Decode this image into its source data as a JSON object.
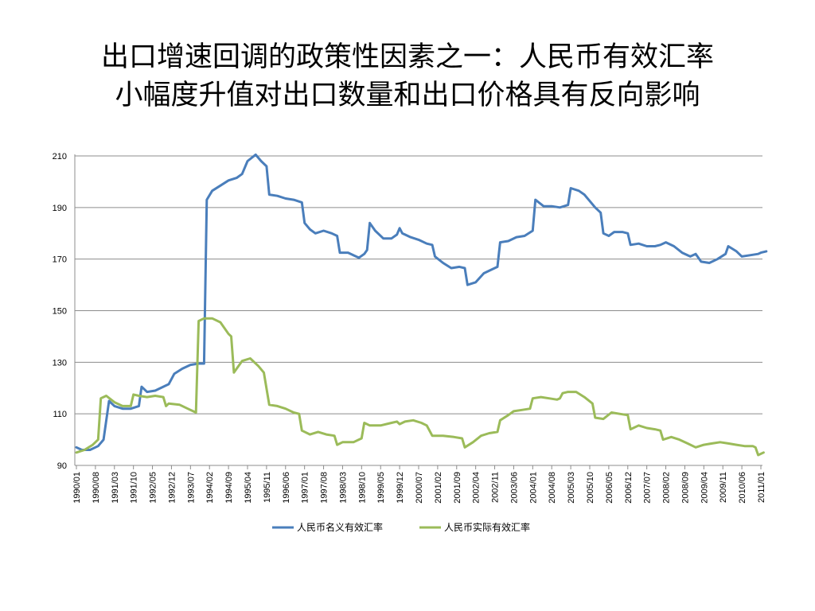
{
  "slide": {
    "title_line1": "出口增速回调的政策性因素之一：人民币有效汇率",
    "title_line2": "小幅度升值对出口数量和出口价格具有反向影响"
  },
  "chart_data": {
    "type": "line",
    "title": "",
    "xlabel": "",
    "ylabel": "",
    "ylim": [
      90,
      210
    ],
    "yticks": [
      90,
      110,
      130,
      150,
      170,
      190,
      210
    ],
    "x_tick_labels": [
      "1990/01",
      "1990/08",
      "1991/03",
      "1991/10",
      "1992/05",
      "1992/12",
      "1993/07",
      "1994/02",
      "1994/09",
      "1995/04",
      "1995/11",
      "1996/06",
      "1997/01",
      "1997/08",
      "1998/03",
      "1998/10",
      "1999/05",
      "1999/12",
      "2000/07",
      "2001/02",
      "2001/09",
      "2002/04",
      "2002/11",
      "2003/06",
      "2004/01",
      "2004/08",
      "2005/03",
      "2005/10",
      "2006/05",
      "2006/12",
      "2007/07",
      "2008/02",
      "2008/09",
      "2009/04",
      "2009/11",
      "2010/06",
      "2011/01"
    ],
    "grid": "horizontal",
    "legend_position": "bottom",
    "series": [
      {
        "name": "人民币名义有效汇率",
        "color": "#4a7ebb",
        "points": [
          [
            "1990/01",
            97
          ],
          [
            "1990/03",
            96
          ],
          [
            "1990/06",
            96
          ],
          [
            "1990/09",
            97.5
          ],
          [
            "1990/11",
            100
          ],
          [
            "1991/01",
            115
          ],
          [
            "1991/03",
            113
          ],
          [
            "1991/06",
            112
          ],
          [
            "1991/09",
            112
          ],
          [
            "1991/12",
            113
          ],
          [
            "1992/01",
            120.5
          ],
          [
            "1992/03",
            118.5
          ],
          [
            "1992/06",
            119
          ],
          [
            "1992/09",
            120.5
          ],
          [
            "1992/11",
            121.5
          ],
          [
            "1993/01",
            125.5
          ],
          [
            "1993/04",
            127.5
          ],
          [
            "1993/07",
            129
          ],
          [
            "1993/10",
            129.5
          ],
          [
            "1993/12",
            129.5
          ],
          [
            "1994/01",
            193
          ],
          [
            "1994/03",
            196.5
          ],
          [
            "1994/06",
            198.5
          ],
          [
            "1994/09",
            200.5
          ],
          [
            "1994/12",
            201.5
          ],
          [
            "1995/02",
            203
          ],
          [
            "1995/04",
            208
          ],
          [
            "1995/07",
            210.5
          ],
          [
            "1995/09",
            208
          ],
          [
            "1995/11",
            206
          ],
          [
            "1995/12",
            195
          ],
          [
            "1996/03",
            194.5
          ],
          [
            "1996/06",
            193.5
          ],
          [
            "1996/09",
            193
          ],
          [
            "1996/12",
            192
          ],
          [
            "1997/01",
            184
          ],
          [
            "1997/03",
            181.5
          ],
          [
            "1997/05",
            180
          ],
          [
            "1997/08",
            181
          ],
          [
            "1997/11",
            180
          ],
          [
            "1998/01",
            179
          ],
          [
            "1998/02",
            172.5
          ],
          [
            "1998/05",
            172.5
          ],
          [
            "1998/09",
            170.5
          ],
          [
            "1998/11",
            172
          ],
          [
            "1998/12",
            173.5
          ],
          [
            "1999/01",
            184
          ],
          [
            "1999/03",
            181
          ],
          [
            "1999/06",
            178
          ],
          [
            "1999/09",
            178
          ],
          [
            "1999/11",
            179.5
          ],
          [
            "1999/12",
            182
          ],
          [
            "2000/01",
            180
          ],
          [
            "2000/04",
            178.5
          ],
          [
            "2000/07",
            177.5
          ],
          [
            "2000/10",
            176
          ],
          [
            "2000/12",
            175.5
          ],
          [
            "2001/01",
            171
          ],
          [
            "2001/04",
            168.5
          ],
          [
            "2001/07",
            166.5
          ],
          [
            "2001/10",
            167
          ],
          [
            "2001/12",
            166.5
          ],
          [
            "2002/01",
            160
          ],
          [
            "2002/04",
            161
          ],
          [
            "2002/07",
            164.5
          ],
          [
            "2002/10",
            166
          ],
          [
            "2002/12",
            167
          ],
          [
            "2003/01",
            176.5
          ],
          [
            "2003/04",
            177
          ],
          [
            "2003/07",
            178.5
          ],
          [
            "2003/10",
            179
          ],
          [
            "2004/01",
            181
          ],
          [
            "2004/02",
            193
          ],
          [
            "2004/05",
            190.5
          ],
          [
            "2004/08",
            190.5
          ],
          [
            "2004/11",
            190
          ],
          [
            "2005/02",
            191
          ],
          [
            "2005/03",
            197.5
          ],
          [
            "2005/06",
            196.5
          ],
          [
            "2005/08",
            195
          ],
          [
            "2005/10",
            192.5
          ],
          [
            "2005/12",
            190
          ],
          [
            "2006/02",
            188
          ],
          [
            "2006/03",
            180
          ],
          [
            "2006/05",
            179
          ],
          [
            "2006/07",
            180.5
          ],
          [
            "2006/10",
            180.5
          ],
          [
            "2006/12",
            180
          ],
          [
            "2007/01",
            175.5
          ],
          [
            "2007/04",
            176
          ],
          [
            "2007/07",
            175
          ],
          [
            "2007/10",
            175
          ],
          [
            "2007/12",
            175.5
          ],
          [
            "2008/02",
            176.5
          ],
          [
            "2008/05",
            175
          ],
          [
            "2008/08",
            172.5
          ],
          [
            "2008/11",
            171
          ],
          [
            "2009/01",
            172
          ],
          [
            "2009/03",
            169
          ],
          [
            "2009/06",
            168.5
          ],
          [
            "2009/09",
            170
          ],
          [
            "2009/12",
            172
          ],
          [
            "2010/01",
            175
          ],
          [
            "2010/04",
            173
          ],
          [
            "2010/06",
            171
          ],
          [
            "2010/09",
            171.5
          ],
          [
            "2010/12",
            172
          ],
          [
            "2011/01",
            172.5
          ],
          [
            "2011/03",
            173
          ]
        ]
      },
      {
        "name": "人民币实际有效汇率",
        "color": "#9bbb59",
        "points": [
          [
            "1990/01",
            95
          ],
          [
            "1990/04",
            96
          ],
          [
            "1990/07",
            98
          ],
          [
            "1990/09",
            100
          ],
          [
            "1990/10",
            116
          ],
          [
            "1990/12",
            117
          ],
          [
            "1991/03",
            114.5
          ],
          [
            "1991/06",
            113
          ],
          [
            "1991/09",
            113
          ],
          [
            "1991/10",
            117.5
          ],
          [
            "1991/12",
            117
          ],
          [
            "1992/03",
            116.5
          ],
          [
            "1992/06",
            117
          ],
          [
            "1992/09",
            116.5
          ],
          [
            "1992/10",
            113
          ],
          [
            "1992/11",
            114
          ],
          [
            "1993/03",
            113.5
          ],
          [
            "1993/06",
            112
          ],
          [
            "1993/09",
            110.5
          ],
          [
            "1993/10",
            146
          ],
          [
            "1993/12",
            147
          ],
          [
            "1994/03",
            147
          ],
          [
            "1994/06",
            145.5
          ],
          [
            "1994/09",
            141
          ],
          [
            "1994/10",
            140
          ],
          [
            "1994/11",
            126
          ],
          [
            "1995/02",
            130.5
          ],
          [
            "1995/05",
            131.5
          ],
          [
            "1995/08",
            128.5
          ],
          [
            "1995/10",
            126
          ],
          [
            "1995/12",
            113.5
          ],
          [
            "1996/03",
            113
          ],
          [
            "1996/06",
            112
          ],
          [
            "1996/09",
            110.5
          ],
          [
            "1996/11",
            110
          ],
          [
            "1996/12",
            103.5
          ],
          [
            "1997/03",
            102
          ],
          [
            "1997/06",
            103
          ],
          [
            "1997/09",
            102
          ],
          [
            "1997/12",
            101.5
          ],
          [
            "1998/01",
            98
          ],
          [
            "1998/03",
            99
          ],
          [
            "1998/07",
            99
          ],
          [
            "1998/10",
            100.5
          ],
          [
            "1998/11",
            106.5
          ],
          [
            "1999/01",
            105.5
          ],
          [
            "1999/05",
            105.5
          ],
          [
            "1999/09",
            106.5
          ],
          [
            "1999/11",
            107
          ],
          [
            "1999/12",
            106
          ],
          [
            "2000/02",
            107
          ],
          [
            "2000/05",
            107.5
          ],
          [
            "2000/08",
            106.5
          ],
          [
            "2000/10",
            105.5
          ],
          [
            "2000/12",
            101.5
          ],
          [
            "2001/04",
            101.5
          ],
          [
            "2001/08",
            101
          ],
          [
            "2001/11",
            100.5
          ],
          [
            "2001/12",
            97
          ],
          [
            "2002/03",
            99
          ],
          [
            "2002/06",
            101.5
          ],
          [
            "2002/09",
            102.5
          ],
          [
            "2002/12",
            103
          ],
          [
            "2003/01",
            107.5
          ],
          [
            "2003/04",
            109.5
          ],
          [
            "2003/06",
            111
          ],
          [
            "2003/09",
            111.5
          ],
          [
            "2003/12",
            112
          ],
          [
            "2004/01",
            116
          ],
          [
            "2004/04",
            116.5
          ],
          [
            "2004/07",
            116
          ],
          [
            "2004/10",
            115.5
          ],
          [
            "2004/11",
            116
          ],
          [
            "2004/12",
            118
          ],
          [
            "2005/02",
            118.5
          ],
          [
            "2005/05",
            118.5
          ],
          [
            "2005/08",
            116.5
          ],
          [
            "2005/11",
            114
          ],
          [
            "2005/12",
            108.5
          ],
          [
            "2006/03",
            108
          ],
          [
            "2006/06",
            110.5
          ],
          [
            "2006/09",
            110
          ],
          [
            "2006/12",
            109.5
          ],
          [
            "2007/01",
            104
          ],
          [
            "2007/04",
            105.5
          ],
          [
            "2007/07",
            104.5
          ],
          [
            "2007/10",
            104
          ],
          [
            "2007/12",
            103.5
          ],
          [
            "2008/01",
            100
          ],
          [
            "2008/04",
            101
          ],
          [
            "2008/07",
            100
          ],
          [
            "2008/10",
            98.5
          ],
          [
            "2009/01",
            97
          ],
          [
            "2009/04",
            98
          ],
          [
            "2009/07",
            98.5
          ],
          [
            "2009/10",
            99
          ],
          [
            "2010/01",
            98.5
          ],
          [
            "2010/04",
            98
          ],
          [
            "2010/07",
            97.5
          ],
          [
            "2010/10",
            97.5
          ],
          [
            "2010/11",
            97
          ],
          [
            "2010/12",
            94
          ],
          [
            "2011/02",
            95
          ]
        ]
      }
    ]
  }
}
